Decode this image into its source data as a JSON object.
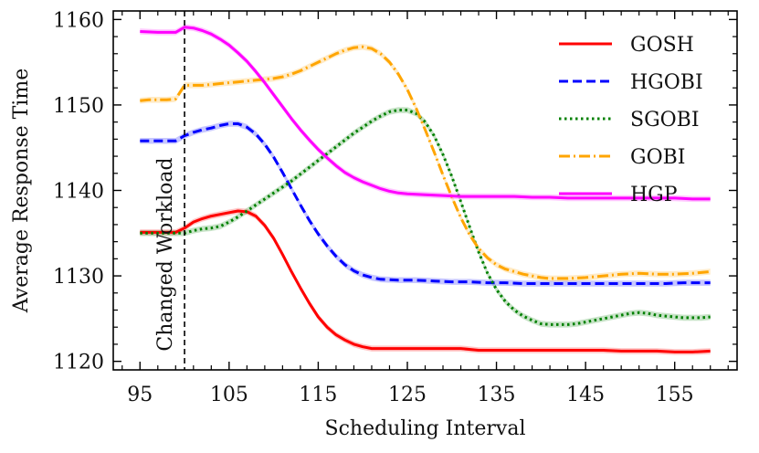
{
  "chart_data": {
    "type": "line",
    "title": "",
    "xlabel": "Scheduling Interval",
    "ylabel": "Average Response Time",
    "xlim": [
      92,
      162
    ],
    "ylim": [
      1119,
      1161
    ],
    "xticks": [
      95,
      105,
      115,
      125,
      135,
      145,
      155
    ],
    "yticks": [
      1120,
      1130,
      1140,
      1150,
      1160
    ],
    "xtick_labels": [
      "95",
      "105",
      "115",
      "125",
      "135",
      "145",
      "155"
    ],
    "ytick_labels": [
      "1120",
      "1130",
      "1140",
      "1150",
      "1160"
    ],
    "legend_position": "top-right",
    "annotation": {
      "text": "Changed Workload",
      "x": 100
    },
    "series": [
      {
        "name": "GOSH",
        "color": "#ff0000",
        "dash": "",
        "points": [
          [
            95,
            1135.1
          ],
          [
            97,
            1135.1
          ],
          [
            99,
            1135.1
          ],
          [
            100,
            1135.6
          ],
          [
            101,
            1136.3
          ],
          [
            102,
            1136.7
          ],
          [
            103,
            1137.0
          ],
          [
            104,
            1137.2
          ],
          [
            105,
            1137.4
          ],
          [
            106,
            1137.6
          ],
          [
            107,
            1137.5
          ],
          [
            108,
            1137.0
          ],
          [
            109,
            1135.9
          ],
          [
            110,
            1134.4
          ],
          [
            111,
            1132.5
          ],
          [
            112,
            1130.5
          ],
          [
            113,
            1128.6
          ],
          [
            114,
            1126.8
          ],
          [
            115,
            1125.2
          ],
          [
            116,
            1124.0
          ],
          [
            117,
            1123.1
          ],
          [
            118,
            1122.5
          ],
          [
            119,
            1122.0
          ],
          [
            120,
            1121.7
          ],
          [
            121,
            1121.5
          ],
          [
            123,
            1121.5
          ],
          [
            125,
            1121.5
          ],
          [
            127,
            1121.5
          ],
          [
            129,
            1121.5
          ],
          [
            131,
            1121.5
          ],
          [
            133,
            1121.3
          ],
          [
            135,
            1121.3
          ],
          [
            137,
            1121.3
          ],
          [
            139,
            1121.3
          ],
          [
            141,
            1121.3
          ],
          [
            143,
            1121.3
          ],
          [
            145,
            1121.3
          ],
          [
            147,
            1121.3
          ],
          [
            149,
            1121.2
          ],
          [
            151,
            1121.2
          ],
          [
            153,
            1121.2
          ],
          [
            155,
            1121.1
          ],
          [
            157,
            1121.1
          ],
          [
            159,
            1121.2
          ]
        ]
      },
      {
        "name": "HGOBI",
        "color": "#0000ff",
        "dash": "10,5",
        "points": [
          [
            95,
            1145.8
          ],
          [
            97,
            1145.8
          ],
          [
            99,
            1145.8
          ],
          [
            100,
            1146.4
          ],
          [
            101,
            1146.8
          ],
          [
            102,
            1147.1
          ],
          [
            103,
            1147.3
          ],
          [
            104,
            1147.6
          ],
          [
            105,
            1147.8
          ],
          [
            106,
            1147.8
          ],
          [
            107,
            1147.4
          ],
          [
            108,
            1146.6
          ],
          [
            109,
            1145.4
          ],
          [
            110,
            1143.9
          ],
          [
            111,
            1142.1
          ],
          [
            112,
            1140.2
          ],
          [
            113,
            1138.3
          ],
          [
            114,
            1136.5
          ],
          [
            115,
            1134.9
          ],
          [
            116,
            1133.5
          ],
          [
            117,
            1132.3
          ],
          [
            118,
            1131.3
          ],
          [
            119,
            1130.6
          ],
          [
            120,
            1130.1
          ],
          [
            121,
            1129.8
          ],
          [
            122,
            1129.6
          ],
          [
            124,
            1129.5
          ],
          [
            126,
            1129.5
          ],
          [
            128,
            1129.4
          ],
          [
            130,
            1129.3
          ],
          [
            132,
            1129.3
          ],
          [
            134,
            1129.2
          ],
          [
            136,
            1129.2
          ],
          [
            138,
            1129.1
          ],
          [
            140,
            1129.1
          ],
          [
            142,
            1129.1
          ],
          [
            144,
            1129.1
          ],
          [
            146,
            1129.1
          ],
          [
            148,
            1129.1
          ],
          [
            150,
            1129.1
          ],
          [
            152,
            1129.1
          ],
          [
            154,
            1129.1
          ],
          [
            156,
            1129.2
          ],
          [
            159,
            1129.2
          ]
        ]
      },
      {
        "name": "SGOBI",
        "color": "#008000",
        "dash": "2.5,3.5",
        "points": [
          [
            95,
            1135.0
          ],
          [
            97,
            1135.0
          ],
          [
            99,
            1135.0
          ],
          [
            100,
            1135.0
          ],
          [
            101,
            1135.3
          ],
          [
            102,
            1135.5
          ],
          [
            103,
            1135.6
          ],
          [
            104,
            1135.8
          ],
          [
            105,
            1136.3
          ],
          [
            106,
            1136.9
          ],
          [
            107,
            1137.6
          ],
          [
            108,
            1138.3
          ],
          [
            109,
            1139.0
          ],
          [
            110,
            1139.7
          ],
          [
            111,
            1140.4
          ],
          [
            112,
            1141.1
          ],
          [
            113,
            1141.9
          ],
          [
            114,
            1142.7
          ],
          [
            115,
            1143.5
          ],
          [
            116,
            1144.3
          ],
          [
            117,
            1145.1
          ],
          [
            118,
            1145.9
          ],
          [
            119,
            1146.7
          ],
          [
            120,
            1147.4
          ],
          [
            121,
            1148.1
          ],
          [
            122,
            1148.7
          ],
          [
            123,
            1149.2
          ],
          [
            124,
            1149.4
          ],
          [
            125,
            1149.4
          ],
          [
            126,
            1149.0
          ],
          [
            127,
            1148.0
          ],
          [
            128,
            1146.4
          ],
          [
            129,
            1144.2
          ],
          [
            130,
            1141.6
          ],
          [
            131,
            1138.7
          ],
          [
            132,
            1135.7
          ],
          [
            133,
            1132.8
          ],
          [
            134,
            1130.3
          ],
          [
            135,
            1128.4
          ],
          [
            136,
            1127.0
          ],
          [
            137,
            1126.0
          ],
          [
            138,
            1125.3
          ],
          [
            139,
            1124.8
          ],
          [
            140,
            1124.4
          ],
          [
            141,
            1124.3
          ],
          [
            142,
            1124.3
          ],
          [
            143,
            1124.3
          ],
          [
            144,
            1124.4
          ],
          [
            145,
            1124.6
          ],
          [
            146,
            1124.8
          ],
          [
            147,
            1125.0
          ],
          [
            148,
            1125.2
          ],
          [
            149,
            1125.4
          ],
          [
            150,
            1125.6
          ],
          [
            151,
            1125.7
          ],
          [
            152,
            1125.6
          ],
          [
            153,
            1125.4
          ],
          [
            154,
            1125.3
          ],
          [
            155,
            1125.2
          ],
          [
            156,
            1125.1
          ],
          [
            157,
            1125.1
          ],
          [
            158,
            1125.1
          ],
          [
            159,
            1125.2
          ]
        ]
      },
      {
        "name": "GOBI",
        "color": "#ffa500",
        "dash": "12,4,2,4",
        "points": [
          [
            95,
            1150.5
          ],
          [
            96,
            1150.6
          ],
          [
            97,
            1150.6
          ],
          [
            98,
            1150.6
          ],
          [
            99,
            1150.7
          ],
          [
            100,
            1152.3
          ],
          [
            101,
            1152.3
          ],
          [
            102,
            1152.3
          ],
          [
            103,
            1152.4
          ],
          [
            104,
            1152.5
          ],
          [
            105,
            1152.6
          ],
          [
            106,
            1152.7
          ],
          [
            107,
            1152.8
          ],
          [
            108,
            1152.9
          ],
          [
            109,
            1153.0
          ],
          [
            110,
            1153.1
          ],
          [
            111,
            1153.3
          ],
          [
            112,
            1153.6
          ],
          [
            113,
            1154.0
          ],
          [
            114,
            1154.5
          ],
          [
            115,
            1155.0
          ],
          [
            116,
            1155.5
          ],
          [
            117,
            1156.0
          ],
          [
            118,
            1156.4
          ],
          [
            119,
            1156.7
          ],
          [
            120,
            1156.8
          ],
          [
            121,
            1156.6
          ],
          [
            122,
            1156.0
          ],
          [
            123,
            1155.0
          ],
          [
            124,
            1153.6
          ],
          [
            125,
            1151.8
          ],
          [
            126,
            1149.6
          ],
          [
            127,
            1147.1
          ],
          [
            128,
            1144.5
          ],
          [
            129,
            1141.8
          ],
          [
            130,
            1139.2
          ],
          [
            131,
            1136.8
          ],
          [
            132,
            1134.8
          ],
          [
            133,
            1133.2
          ],
          [
            134,
            1132.1
          ],
          [
            135,
            1131.3
          ],
          [
            136,
            1130.8
          ],
          [
            137,
            1130.5
          ],
          [
            138,
            1130.2
          ],
          [
            139,
            1130.0
          ],
          [
            140,
            1129.8
          ],
          [
            141,
            1129.7
          ],
          [
            143,
            1129.7
          ],
          [
            145,
            1129.8
          ],
          [
            147,
            1130.0
          ],
          [
            149,
            1130.2
          ],
          [
            151,
            1130.3
          ],
          [
            153,
            1130.2
          ],
          [
            155,
            1130.2
          ],
          [
            157,
            1130.3
          ],
          [
            159,
            1130.5
          ]
        ]
      },
      {
        "name": "HGP",
        "color": "#ff00ff",
        "dash": "",
        "points": [
          [
            95,
            1158.6
          ],
          [
            97,
            1158.5
          ],
          [
            99,
            1158.5
          ],
          [
            100,
            1159.1
          ],
          [
            101,
            1159.0
          ],
          [
            102,
            1158.7
          ],
          [
            103,
            1158.3
          ],
          [
            104,
            1157.7
          ],
          [
            105,
            1157.0
          ],
          [
            106,
            1156.1
          ],
          [
            107,
            1155.1
          ],
          [
            108,
            1153.9
          ],
          [
            109,
            1152.6
          ],
          [
            110,
            1151.2
          ],
          [
            111,
            1149.8
          ],
          [
            112,
            1148.4
          ],
          [
            113,
            1147.1
          ],
          [
            114,
            1145.9
          ],
          [
            115,
            1144.8
          ],
          [
            116,
            1143.8
          ],
          [
            117,
            1142.9
          ],
          [
            118,
            1142.1
          ],
          [
            119,
            1141.5
          ],
          [
            120,
            1141.0
          ],
          [
            121,
            1140.6
          ],
          [
            122,
            1140.2
          ],
          [
            123,
            1139.9
          ],
          [
            124,
            1139.7
          ],
          [
            125,
            1139.6
          ],
          [
            127,
            1139.5
          ],
          [
            129,
            1139.4
          ],
          [
            131,
            1139.3
          ],
          [
            133,
            1139.3
          ],
          [
            135,
            1139.3
          ],
          [
            137,
            1139.3
          ],
          [
            139,
            1139.2
          ],
          [
            141,
            1139.2
          ],
          [
            143,
            1139.1
          ],
          [
            145,
            1139.1
          ],
          [
            147,
            1139.1
          ],
          [
            149,
            1139.1
          ],
          [
            151,
            1139.1
          ],
          [
            153,
            1139.1
          ],
          [
            155,
            1139.1
          ],
          [
            157,
            1139.0
          ],
          [
            159,
            1139.0
          ]
        ]
      }
    ]
  }
}
